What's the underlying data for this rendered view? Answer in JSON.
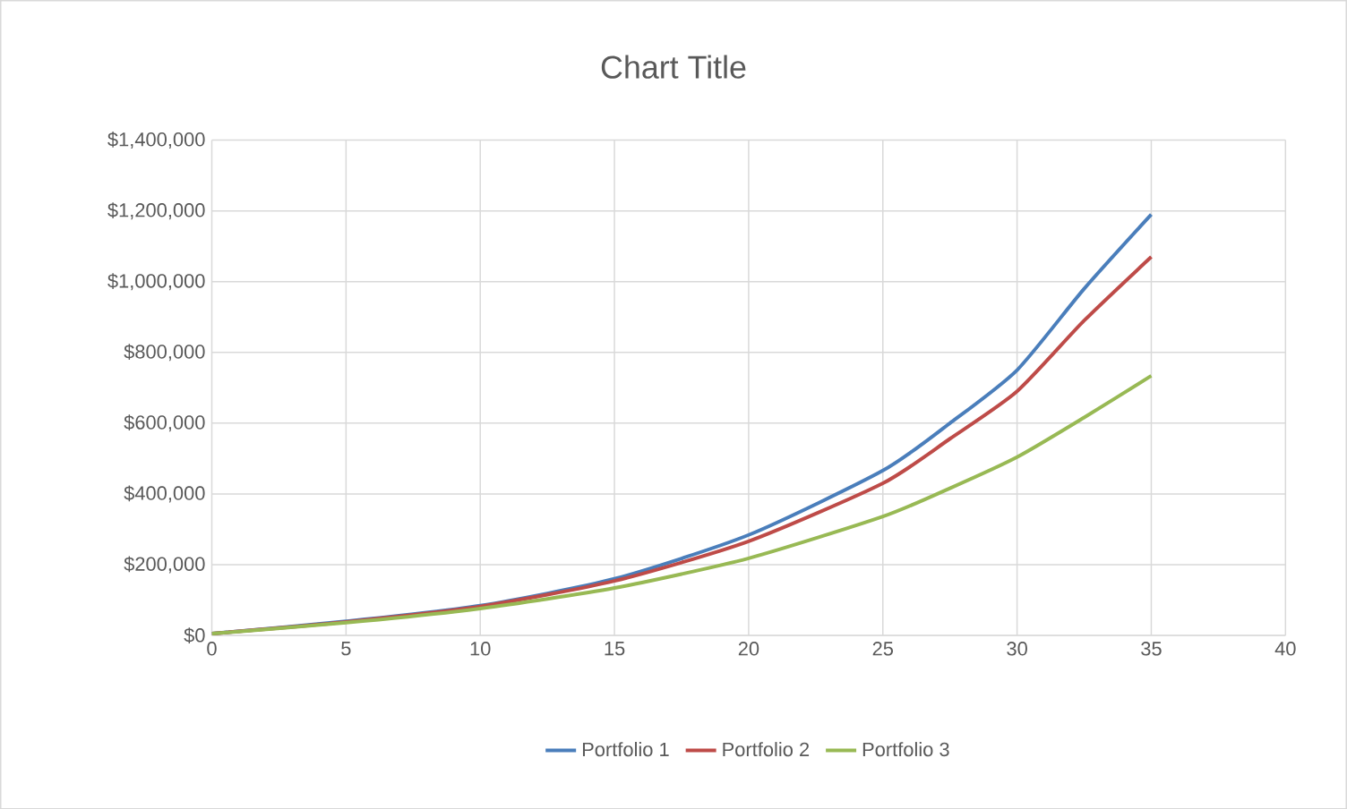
{
  "chart_data": {
    "type": "line",
    "title": "Chart Title",
    "x": [
      0,
      5,
      10,
      15,
      20,
      25,
      27.5,
      30,
      32.5,
      35
    ],
    "series": [
      {
        "name": "Portfolio 1",
        "color": "#4a7ebb",
        "values": [
          5000,
          40000,
          84000,
          160000,
          284000,
          466000,
          600000,
          750000,
          980000,
          1190000
        ]
      },
      {
        "name": "Portfolio 2",
        "color": "#be4b48",
        "values": [
          5000,
          38000,
          82000,
          154000,
          266000,
          430000,
          556000,
          690000,
          890000,
          1070000
        ]
      },
      {
        "name": "Portfolio 3",
        "color": "#98b954",
        "values": [
          5000,
          36000,
          76000,
          134000,
          218000,
          336000,
          416000,
          504000,
          616000,
          734000
        ]
      }
    ],
    "xlim": [
      0,
      40
    ],
    "xticks": [
      0,
      5,
      10,
      15,
      20,
      25,
      30,
      35,
      40
    ],
    "ylim": [
      0,
      1400000
    ],
    "yticks": [
      {
        "value": 0,
        "label": "$0"
      },
      {
        "value": 200000,
        "label": "$200,000"
      },
      {
        "value": 400000,
        "label": "$400,000"
      },
      {
        "value": 600000,
        "label": "$600,000"
      },
      {
        "value": 800000,
        "label": "$800,000"
      },
      {
        "value": 1000000,
        "label": "$1,000,000"
      },
      {
        "value": 1200000,
        "label": "$1,200,000"
      },
      {
        "value": 1400000,
        "label": "$1,400,000"
      }
    ],
    "grid": true,
    "legend": "bottom",
    "marker": "none",
    "line_style": "solid"
  }
}
